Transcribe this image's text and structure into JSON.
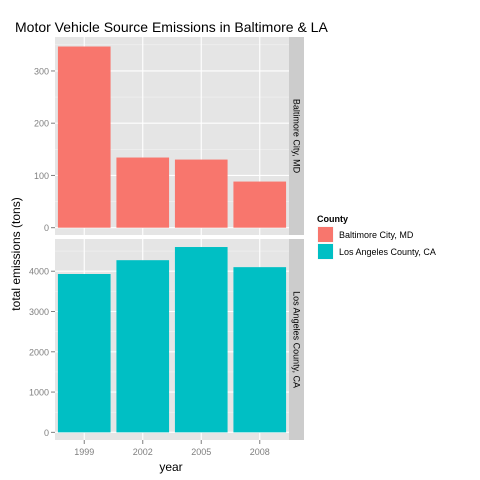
{
  "chart_data": {
    "type": "bar",
    "title": "Motor Vehicle Source Emissions in Baltimore & LA",
    "xlabel": "year",
    "ylabel": "total emissions (tons)",
    "categories": [
      "1999",
      "2002",
      "2005",
      "2008"
    ],
    "grid": true,
    "legend": {
      "title": "County",
      "placement": "right"
    },
    "facets": [
      {
        "name": "Baltimore City, MD",
        "color": "#F8766D",
        "values": [
          346.8,
          134.3,
          130.4,
          88.3
        ],
        "ylim": [
          -14,
          365
        ],
        "yticks": [
          0,
          100,
          200,
          300
        ]
      },
      {
        "name": "Los Angeles County, CA",
        "color": "#00BFC4",
        "values": [
          3931,
          4274,
          4601,
          4101
        ],
        "ylim": [
          -190,
          4800
        ],
        "yticks": [
          0,
          1000,
          2000,
          3000,
          4000
        ]
      }
    ]
  }
}
